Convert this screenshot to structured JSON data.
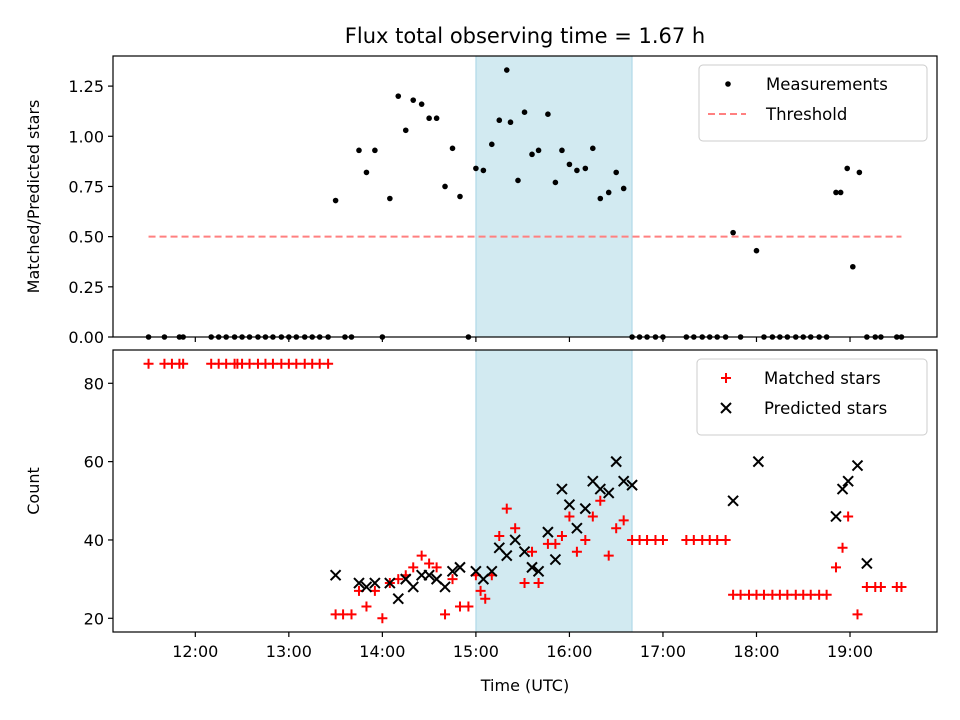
{
  "chart_data": [
    {
      "type": "scatter",
      "title": "Flux total observing time = 1.67 h",
      "xlabel": "",
      "ylabel": "Matched/Predicted stars",
      "xlim": [
        11.12,
        19.93
      ],
      "ylim": [
        0.0,
        1.4
      ],
      "yticks": [
        0.0,
        0.25,
        0.5,
        0.75,
        1.0,
        1.25
      ],
      "ytick_labels": [
        "0.00",
        "0.25",
        "0.50",
        "0.75",
        "1.00",
        "1.25"
      ],
      "xticks": [
        12,
        13,
        14,
        15,
        16,
        17,
        18,
        19
      ],
      "highlight_span": {
        "from": 15.0,
        "to": 16.67,
        "color": "#add8e6"
      },
      "legend": {
        "position": "upper right",
        "entries": [
          "Measurements",
          "Threshold"
        ]
      },
      "series": [
        {
          "name": "Measurements",
          "marker": "dot",
          "color": "#000000",
          "x": [
            11.5,
            11.67,
            11.83,
            11.87,
            12.17,
            12.25,
            12.33,
            12.42,
            12.5,
            12.58,
            12.67,
            12.75,
            12.83,
            12.92,
            13.0,
            13.08,
            13.17,
            13.25,
            13.33,
            13.42,
            13.5,
            13.6,
            13.67,
            13.75,
            13.83,
            13.92,
            14.0,
            14.08,
            14.17,
            14.25,
            14.33,
            14.42,
            14.5,
            14.58,
            14.67,
            14.75,
            14.83,
            14.92,
            15.0,
            15.08,
            15.17,
            15.25,
            15.33,
            15.37,
            15.45,
            15.52,
            15.6,
            15.67,
            15.77,
            15.85,
            15.92,
            16.0,
            16.08,
            16.17,
            16.25,
            16.33,
            16.42,
            16.5,
            16.58,
            16.67,
            16.75,
            16.83,
            16.92,
            17.0,
            17.25,
            17.33,
            17.42,
            17.5,
            17.58,
            17.67,
            17.75,
            17.83,
            18.0,
            18.08,
            18.17,
            18.25,
            18.33,
            18.42,
            18.5,
            18.58,
            18.67,
            18.75,
            18.85,
            18.9,
            18.97,
            19.03,
            19.1,
            19.18,
            19.27,
            19.33,
            19.5,
            19.55
          ],
          "y": [
            0.0,
            0.0,
            0.0,
            0.0,
            0.0,
            0.0,
            0.0,
            0.0,
            0.0,
            0.0,
            0.0,
            0.0,
            0.0,
            0.0,
            0.0,
            0.0,
            0.0,
            0.0,
            0.0,
            0.0,
            0.68,
            0.0,
            0.0,
            0.93,
            0.82,
            0.93,
            0.0,
            0.69,
            1.2,
            1.03,
            1.18,
            1.16,
            1.09,
            1.09,
            0.75,
            0.94,
            0.7,
            0.0,
            0.84,
            0.83,
            0.96,
            1.08,
            1.33,
            1.07,
            0.78,
            1.12,
            0.91,
            0.93,
            1.11,
            0.77,
            0.93,
            0.86,
            0.83,
            0.84,
            0.94,
            0.69,
            0.72,
            0.82,
            0.74,
            0.0,
            0.0,
            0.0,
            0.0,
            0.0,
            0.0,
            0.0,
            0.0,
            0.0,
            0.0,
            0.0,
            0.52,
            0.0,
            0.43,
            0.0,
            0.0,
            0.0,
            0.0,
            0.0,
            0.0,
            0.0,
            0.0,
            0.0,
            0.72,
            0.72,
            0.84,
            0.35,
            0.82,
            0.0,
            0.0,
            0.0,
            0.0,
            0.0
          ]
        },
        {
          "name": "Threshold",
          "type": "line",
          "style": "dashed",
          "color": "#ff8080",
          "x": [
            11.5,
            19.55
          ],
          "y": [
            0.5,
            0.5
          ]
        }
      ]
    },
    {
      "type": "scatter",
      "title": "",
      "xlabel": "Time (UTC)",
      "ylabel": "Count",
      "xlim": [
        11.12,
        19.93
      ],
      "ylim": [
        16.5,
        88.5
      ],
      "yticks": [
        20,
        40,
        60,
        80
      ],
      "ytick_labels": [
        "20",
        "40",
        "60",
        "80"
      ],
      "xticks": [
        12,
        13,
        14,
        15,
        16,
        17,
        18,
        19
      ],
      "xtick_labels": [
        "12:00",
        "13:00",
        "14:00",
        "15:00",
        "16:00",
        "17:00",
        "18:00",
        "19:00"
      ],
      "highlight_span": {
        "from": 15.0,
        "to": 16.67,
        "color": "#add8e6"
      },
      "legend": {
        "position": "upper right",
        "entries": [
          "Matched stars",
          "Predicted stars"
        ]
      },
      "series": [
        {
          "name": "Matched stars",
          "marker": "plus",
          "color": "#ff0000",
          "x": [
            11.5,
            11.67,
            11.75,
            11.83,
            11.87,
            12.17,
            12.25,
            12.33,
            12.42,
            12.45,
            12.5,
            12.58,
            12.67,
            12.75,
            12.83,
            12.92,
            13.0,
            13.08,
            13.17,
            13.25,
            13.33,
            13.42,
            13.5,
            13.58,
            13.67,
            13.75,
            13.83,
            13.92,
            14.0,
            14.08,
            14.17,
            14.25,
            14.33,
            14.42,
            14.5,
            14.58,
            14.67,
            14.75,
            14.83,
            14.92,
            15.0,
            15.05,
            15.1,
            15.17,
            15.25,
            15.33,
            15.42,
            15.52,
            15.6,
            15.67,
            15.77,
            15.85,
            15.92,
            16.0,
            16.08,
            16.17,
            16.25,
            16.33,
            16.42,
            16.5,
            16.58,
            16.67,
            16.75,
            16.83,
            16.92,
            17.0,
            17.25,
            17.33,
            17.42,
            17.5,
            17.58,
            17.67,
            17.75,
            17.83,
            17.92,
            18.0,
            18.08,
            18.17,
            18.25,
            18.33,
            18.42,
            18.5,
            18.58,
            18.67,
            18.75,
            18.85,
            18.92,
            18.98,
            19.08,
            19.18,
            19.27,
            19.33,
            19.5,
            19.55
          ],
          "y": [
            85,
            85,
            85,
            85,
            85,
            85,
            85,
            85,
            85,
            85,
            85,
            85,
            85,
            85,
            85,
            85,
            85,
            85,
            85,
            85,
            85,
            85,
            21,
            21,
            21,
            27,
            23,
            27,
            20,
            29,
            30,
            31,
            33,
            36,
            34,
            33,
            21,
            30,
            23,
            23,
            31,
            27,
            25,
            31,
            41,
            48,
            43,
            29,
            37,
            29,
            39,
            39,
            41,
            46,
            37,
            40,
            46,
            50,
            36,
            43,
            45,
            40,
            40,
            40,
            40,
            40,
            40,
            40,
            40,
            40,
            40,
            40,
            26,
            26,
            26,
            26,
            26,
            26,
            26,
            26,
            26,
            26,
            26,
            26,
            26,
            33,
            38,
            46,
            21,
            28,
            28,
            28,
            28,
            28
          ]
        },
        {
          "name": "Predicted stars",
          "marker": "x",
          "color": "#000000",
          "x": [
            13.5,
            13.75,
            13.83,
            13.92,
            14.08,
            14.17,
            14.25,
            14.33,
            14.42,
            14.5,
            14.58,
            14.67,
            14.75,
            14.83,
            15.0,
            15.08,
            15.17,
            15.25,
            15.33,
            15.42,
            15.52,
            15.6,
            15.67,
            15.77,
            15.85,
            15.92,
            16.0,
            16.08,
            16.17,
            16.25,
            16.33,
            16.42,
            16.5,
            16.58,
            16.67,
            17.75,
            18.02,
            18.85,
            18.92,
            18.98,
            19.08,
            19.18
          ],
          "y": [
            31,
            29,
            28,
            29,
            29,
            25,
            30,
            28,
            31,
            31,
            30,
            28,
            32,
            33,
            32,
            30,
            32,
            38,
            36,
            40,
            37,
            33,
            32,
            42,
            35,
            53,
            49,
            43,
            48,
            55,
            53,
            52,
            60,
            55,
            54,
            50,
            60,
            46,
            53,
            55,
            59,
            34
          ]
        }
      ]
    }
  ]
}
